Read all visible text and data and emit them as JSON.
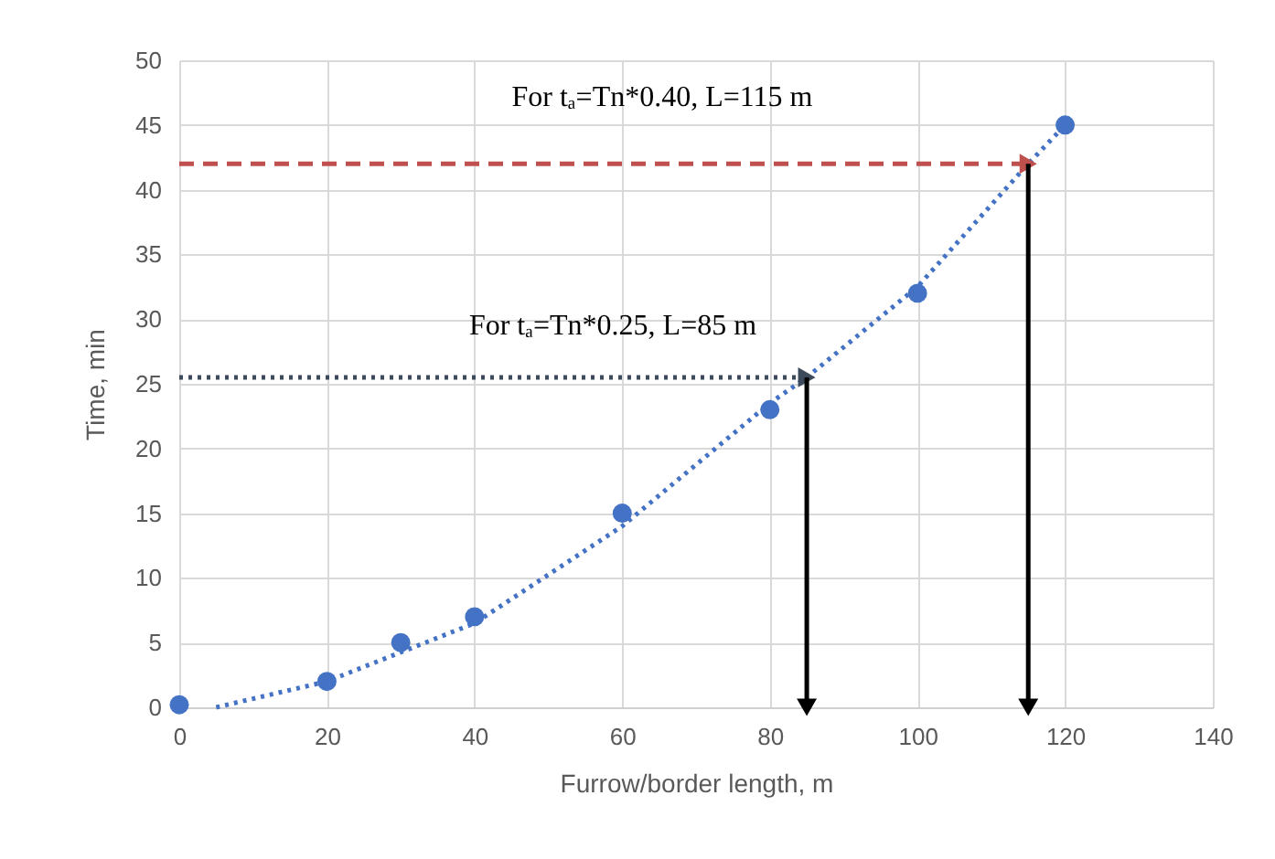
{
  "chart_data": {
    "type": "scatter",
    "xlabel": "Furrow/border length, m",
    "ylabel": "Time, min",
    "annotations": [
      "For tₐ=Tn*0.40,  L=115 m",
      "For tₐ=Tn*0.25, L=85 m"
    ],
    "series": [
      {
        "color": "#4472c4",
        "marker": "circle",
        "x": [
          0,
          20,
          30,
          40,
          60,
          80,
          100,
          120
        ],
        "values": [
          0.2,
          2,
          5,
          7,
          15,
          23,
          32,
          45
        ]
      },
      {
        "type": "line",
        "color": "#4472c4",
        "line_style": "dotted",
        "marker": "none",
        "x": [
          5,
          20,
          40,
          60,
          80,
          85,
          100,
          115,
          120
        ],
        "values": [
          0,
          2,
          6.5,
          14,
          23.5,
          25.5,
          32.5,
          42,
          45
        ]
      },
      {
        "type": "line",
        "color": "#c0504d",
        "line_style": "dashed",
        "marker": "triangle",
        "x": [
          0,
          115
        ],
        "values": [
          42,
          42
        ]
      },
      {
        "type": "line",
        "color": "#3d4a5c",
        "line_style": "dotted",
        "marker": "triangle",
        "x": [
          0,
          85
        ],
        "values": [
          25.5,
          25.5
        ]
      },
      {
        "type": "line",
        "color": "#000000",
        "line_style": "solid",
        "marker": "triangle",
        "x": [
          85,
          85
        ],
        "values": [
          25.5,
          0
        ]
      },
      {
        "type": "line",
        "color": "#000000",
        "line_style": "solid",
        "marker": "triangle",
        "x": [
          115,
          115
        ],
        "values": [
          42,
          0
        ]
      }
    ],
    "xlim": [
      0,
      140
    ],
    "xticks": [
      0,
      20,
      40,
      60,
      80,
      100,
      120,
      140
    ],
    "ylim": [
      0,
      50
    ],
    "yticks": [
      0,
      5,
      10,
      15,
      20,
      25,
      30,
      35,
      40,
      45,
      50
    ],
    "grid": true
  }
}
